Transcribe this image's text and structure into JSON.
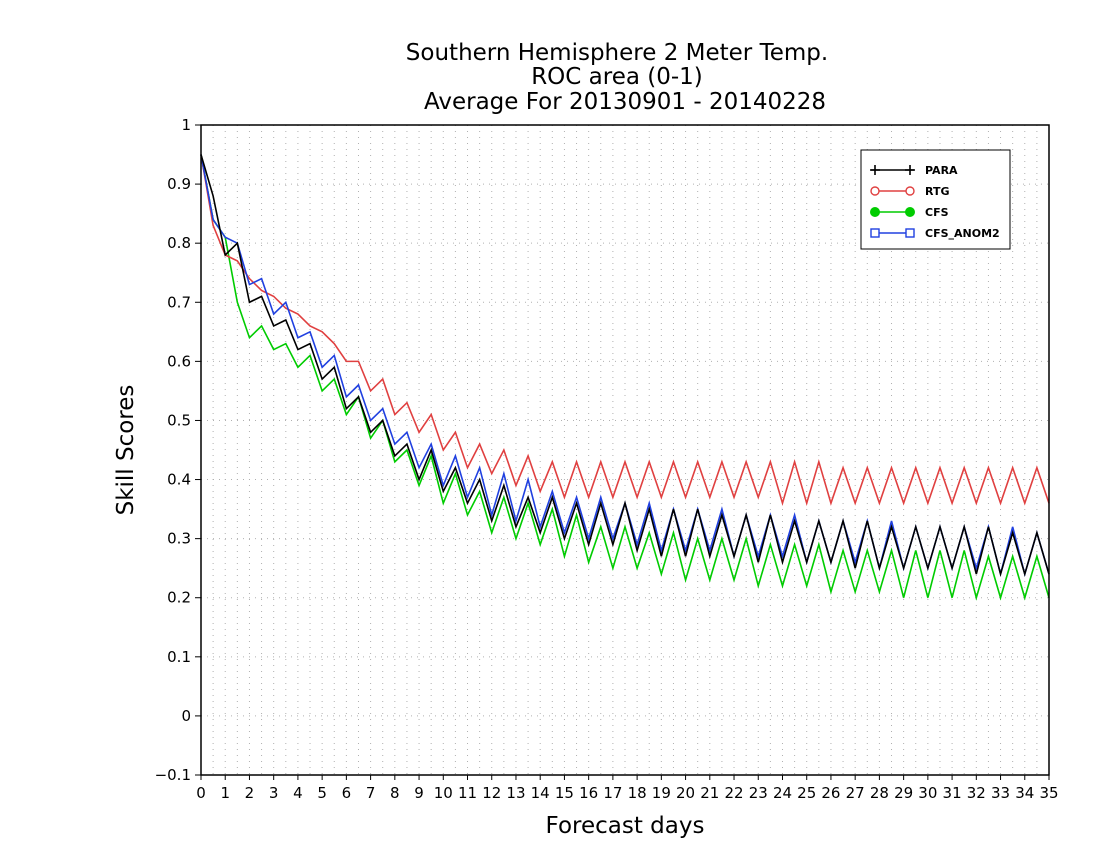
{
  "chart_data": {
    "type": "line",
    "title": [
      "Southern Hemisphere 2 Meter Temp.",
      "ROC area (0-1)",
      "Average For 20130901 - 20140228"
    ],
    "xlabel": "Forecast days",
    "ylabel": "Skill Scores",
    "xlim": [
      0,
      35
    ],
    "ylim": [
      -0.1,
      1
    ],
    "xticks": [
      "0",
      "1",
      "2",
      "3",
      "4",
      "5",
      "6",
      "7",
      "8",
      "9",
      "10",
      "11",
      "12",
      "13",
      "14",
      "15",
      "16",
      "17",
      "18",
      "19",
      "20",
      "21",
      "22",
      "23",
      "24",
      "25",
      "26",
      "27",
      "28",
      "29",
      "30",
      "31",
      "32",
      "33",
      "34",
      "35"
    ],
    "yticks": [
      "−0.1",
      "0",
      "0.1",
      "0.2",
      "0.3",
      "0.4",
      "0.5",
      "0.6",
      "0.7",
      "0.8",
      "0.9",
      "1"
    ],
    "grid": true,
    "legend_position": "top-right",
    "series": [
      {
        "name": "PARA",
        "color": "#000000",
        "marker": "plus",
        "x": [
          0,
          0.5,
          1,
          1.5,
          2,
          2.5,
          3,
          3.5,
          4,
          4.5,
          5,
          5.5,
          6,
          6.5,
          7,
          7.5,
          8,
          8.5,
          9,
          9.5,
          10,
          10.5,
          11,
          11.5,
          12,
          12.5,
          13,
          13.5,
          14,
          14.5,
          15,
          15.5,
          16,
          16.5,
          17,
          17.5,
          18,
          18.5,
          19,
          19.5,
          20,
          20.5,
          21,
          21.5,
          22,
          22.5,
          23,
          23.5,
          24,
          24.5,
          25,
          25.5,
          26,
          26.5,
          27,
          27.5,
          28,
          28.5,
          29,
          29.5,
          30,
          30.5,
          31,
          31.5,
          32,
          32.5,
          33,
          33.5,
          34,
          34.5,
          35
        ],
        "values": [
          0.95,
          0.88,
          0.78,
          0.8,
          0.7,
          0.71,
          0.66,
          0.67,
          0.62,
          0.63,
          0.57,
          0.59,
          0.52,
          0.54,
          0.48,
          0.5,
          0.44,
          0.46,
          0.4,
          0.45,
          0.38,
          0.42,
          0.36,
          0.4,
          0.33,
          0.39,
          0.32,
          0.37,
          0.31,
          0.37,
          0.3,
          0.36,
          0.29,
          0.36,
          0.29,
          0.36,
          0.28,
          0.35,
          0.27,
          0.35,
          0.27,
          0.35,
          0.27,
          0.34,
          0.27,
          0.34,
          0.26,
          0.34,
          0.26,
          0.33,
          0.26,
          0.33,
          0.26,
          0.33,
          0.25,
          0.33,
          0.25,
          0.32,
          0.25,
          0.32,
          0.25,
          0.32,
          0.25,
          0.32,
          0.24,
          0.32,
          0.24,
          0.31,
          0.24,
          0.31,
          0.24
        ]
      },
      {
        "name": "RTG",
        "color": "#e04040",
        "marker": "open-circle",
        "x": [
          0,
          0.5,
          1,
          1.5,
          2,
          2.5,
          3,
          3.5,
          4,
          4.5,
          5,
          5.5,
          6,
          6.5,
          7,
          7.5,
          8,
          8.5,
          9,
          9.5,
          10,
          10.5,
          11,
          11.5,
          12,
          12.5,
          13,
          13.5,
          14,
          14.5,
          15,
          15.5,
          16,
          16.5,
          17,
          17.5,
          18,
          18.5,
          19,
          19.5,
          20,
          20.5,
          21,
          21.5,
          22,
          22.5,
          23,
          23.5,
          24,
          24.5,
          25,
          25.5,
          26,
          26.5,
          27,
          27.5,
          28,
          28.5,
          29,
          29.5,
          30,
          30.5,
          31,
          31.5,
          32,
          32.5,
          33,
          33.5,
          34,
          34.5,
          35
        ],
        "values": [
          0.95,
          0.83,
          0.78,
          0.77,
          0.74,
          0.72,
          0.71,
          0.69,
          0.68,
          0.66,
          0.65,
          0.63,
          0.6,
          0.6,
          0.55,
          0.57,
          0.51,
          0.53,
          0.48,
          0.51,
          0.45,
          0.48,
          0.42,
          0.46,
          0.41,
          0.45,
          0.39,
          0.44,
          0.38,
          0.43,
          0.37,
          0.43,
          0.37,
          0.43,
          0.37,
          0.43,
          0.37,
          0.43,
          0.37,
          0.43,
          0.37,
          0.43,
          0.37,
          0.43,
          0.37,
          0.43,
          0.37,
          0.43,
          0.36,
          0.43,
          0.36,
          0.43,
          0.36,
          0.42,
          0.36,
          0.42,
          0.36,
          0.42,
          0.36,
          0.42,
          0.36,
          0.42,
          0.36,
          0.42,
          0.36,
          0.42,
          0.36,
          0.42,
          0.36,
          0.42,
          0.36
        ]
      },
      {
        "name": "CFS",
        "color": "#00cc00",
        "marker": "filled-circle",
        "x": [
          0,
          0.5,
          1,
          1.5,
          2,
          2.5,
          3,
          3.5,
          4,
          4.5,
          5,
          5.5,
          6,
          6.5,
          7,
          7.5,
          8,
          8.5,
          9,
          9.5,
          10,
          10.5,
          11,
          11.5,
          12,
          12.5,
          13,
          13.5,
          14,
          14.5,
          15,
          15.5,
          16,
          16.5,
          17,
          17.5,
          18,
          18.5,
          19,
          19.5,
          20,
          20.5,
          21,
          21.5,
          22,
          22.5,
          23,
          23.5,
          24,
          24.5,
          25,
          25.5,
          26,
          26.5,
          27,
          27.5,
          28,
          28.5,
          29,
          29.5,
          30,
          30.5,
          31,
          31.5,
          32,
          32.5,
          33,
          33.5,
          34,
          34.5,
          35
        ],
        "values": [
          0.95,
          0.84,
          0.81,
          0.7,
          0.64,
          0.66,
          0.62,
          0.63,
          0.59,
          0.61,
          0.55,
          0.57,
          0.51,
          0.54,
          0.47,
          0.5,
          0.43,
          0.45,
          0.39,
          0.44,
          0.36,
          0.41,
          0.34,
          0.38,
          0.31,
          0.37,
          0.3,
          0.36,
          0.29,
          0.35,
          0.27,
          0.34,
          0.26,
          0.32,
          0.25,
          0.32,
          0.25,
          0.31,
          0.24,
          0.31,
          0.23,
          0.3,
          0.23,
          0.3,
          0.23,
          0.3,
          0.22,
          0.29,
          0.22,
          0.29,
          0.22,
          0.29,
          0.21,
          0.28,
          0.21,
          0.28,
          0.21,
          0.28,
          0.2,
          0.28,
          0.2,
          0.28,
          0.2,
          0.28,
          0.2,
          0.27,
          0.2,
          0.27,
          0.2,
          0.27,
          0.2
        ]
      },
      {
        "name": "CFS_ANOM2",
        "color": "#2040e0",
        "marker": "open-square",
        "x": [
          0,
          0.5,
          1,
          1.5,
          2,
          2.5,
          3,
          3.5,
          4,
          4.5,
          5,
          5.5,
          6,
          6.5,
          7,
          7.5,
          8,
          8.5,
          9,
          9.5,
          10,
          10.5,
          11,
          11.5,
          12,
          12.5,
          13,
          13.5,
          14,
          14.5,
          15,
          15.5,
          16,
          16.5,
          17,
          17.5,
          18,
          18.5,
          19,
          19.5,
          20,
          20.5,
          21,
          21.5,
          22,
          22.5,
          23,
          23.5,
          24,
          24.5,
          25,
          25.5,
          26,
          26.5,
          27,
          27.5,
          28,
          28.5,
          29,
          29.5,
          30,
          30.5,
          31,
          31.5,
          32,
          32.5,
          33,
          33.5,
          34,
          34.5,
          35
        ],
        "values": [
          0.95,
          0.84,
          0.81,
          0.8,
          0.73,
          0.74,
          0.68,
          0.7,
          0.64,
          0.65,
          0.59,
          0.61,
          0.54,
          0.56,
          0.5,
          0.52,
          0.46,
          0.48,
          0.42,
          0.46,
          0.39,
          0.44,
          0.37,
          0.42,
          0.34,
          0.41,
          0.33,
          0.4,
          0.32,
          0.38,
          0.31,
          0.37,
          0.3,
          0.37,
          0.3,
          0.36,
          0.29,
          0.36,
          0.28,
          0.35,
          0.28,
          0.35,
          0.28,
          0.35,
          0.27,
          0.34,
          0.27,
          0.34,
          0.27,
          0.34,
          0.26,
          0.33,
          0.26,
          0.33,
          0.26,
          0.33,
          0.25,
          0.33,
          0.25,
          0.32,
          0.25,
          0.32,
          0.25,
          0.32,
          0.25,
          0.32,
          0.24,
          0.32,
          0.24,
          0.31,
          0.24
        ]
      }
    ]
  }
}
